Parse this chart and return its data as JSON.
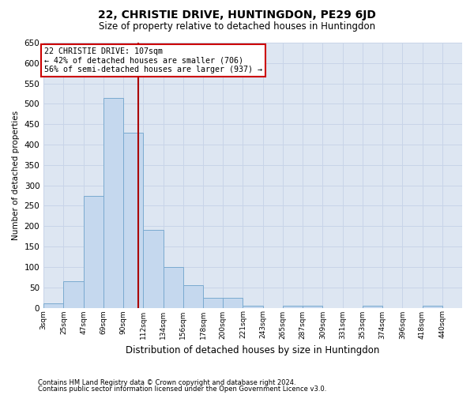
{
  "title": "22, CHRISTIE DRIVE, HUNTINGDON, PE29 6JD",
  "subtitle": "Size of property relative to detached houses in Huntingdon",
  "xlabel": "Distribution of detached houses by size in Huntingdon",
  "ylabel": "Number of detached properties",
  "footnote1": "Contains HM Land Registry data © Crown copyright and database right 2024.",
  "footnote2": "Contains public sector information licensed under the Open Government Licence v3.0.",
  "annotation_line1": "22 CHRISTIE DRIVE: 107sqm",
  "annotation_line2": "← 42% of detached houses are smaller (706)",
  "annotation_line3": "56% of semi-detached houses are larger (937) →",
  "bar_color": "#c5d8ee",
  "bar_edge_color": "#7aaad0",
  "vline_color": "#aa0000",
  "vline_x_index": 4.75,
  "grid_color": "#c8d4e8",
  "background_color": "#dde6f2",
  "categories": [
    "3sqm",
    "25sqm",
    "47sqm",
    "69sqm",
    "90sqm",
    "112sqm",
    "134sqm",
    "156sqm",
    "178sqm",
    "200sqm",
    "221sqm",
    "243sqm",
    "265sqm",
    "287sqm",
    "309sqm",
    "331sqm",
    "353sqm",
    "374sqm",
    "396sqm",
    "418sqm",
    "440sqm"
  ],
  "bar_heights": [
    10,
    65,
    275,
    515,
    430,
    190,
    100,
    55,
    25,
    25,
    5,
    0,
    5,
    5,
    0,
    0,
    5,
    0,
    0,
    5,
    0
  ],
  "ylim": [
    0,
    650
  ],
  "yticks": [
    0,
    50,
    100,
    150,
    200,
    250,
    300,
    350,
    400,
    450,
    500,
    550,
    600,
    650
  ],
  "annotation_box_color": "#ffffff",
  "annotation_border_color": "#cc0000"
}
